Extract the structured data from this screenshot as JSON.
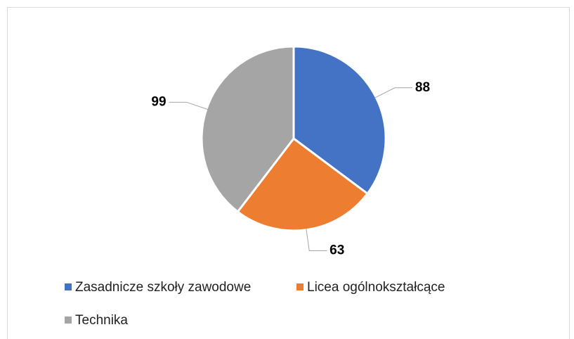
{
  "chart_data": {
    "type": "pie",
    "categories": [
      "Zasadnicze szkoły zawodowe",
      "Licea ogólnokształcące",
      "Technika"
    ],
    "values": [
      88,
      63,
      99
    ],
    "colors": [
      "#4472c4",
      "#ed7d31",
      "#a5a5a5"
    ],
    "legend": "bottom"
  }
}
